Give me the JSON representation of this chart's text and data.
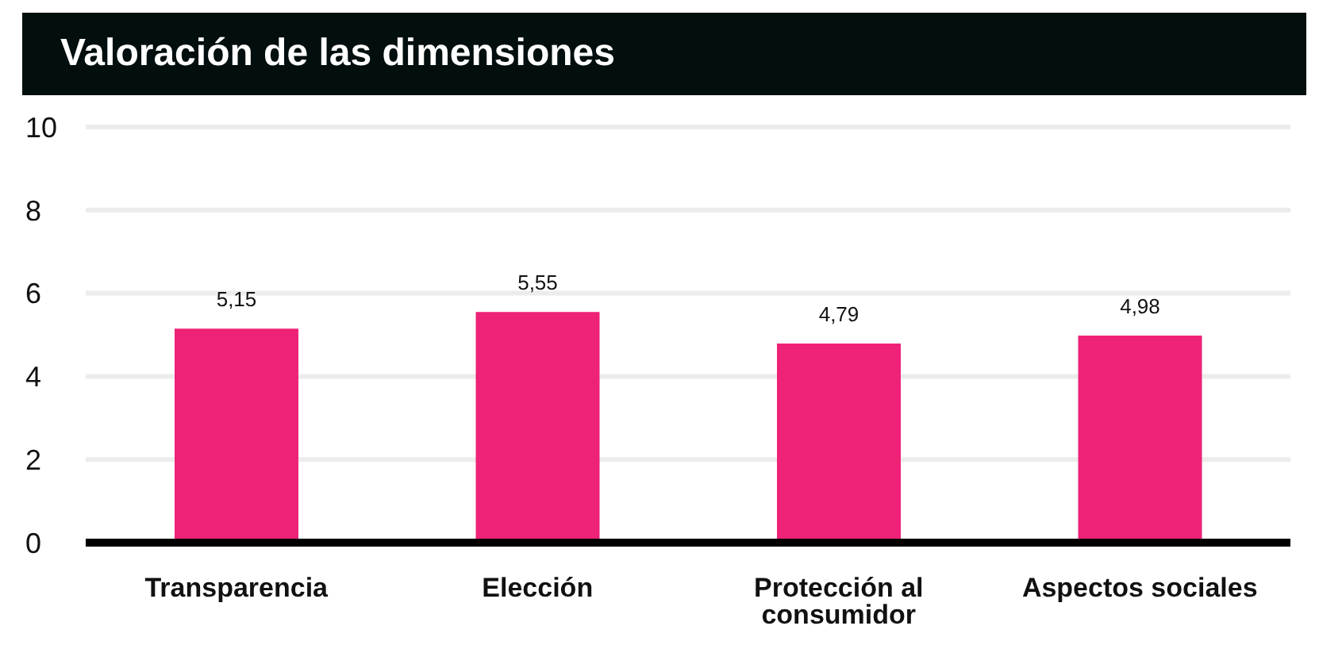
{
  "chart_data": {
    "type": "bar",
    "title": "Valoración de las dimensiones",
    "categories": [
      "Transparencia",
      "Elección",
      "Protección al consumidor",
      "Aspectos sociales"
    ],
    "values": [
      5.15,
      5.55,
      4.79,
      4.98
    ],
    "value_labels": [
      "5,15",
      "5,55",
      "4,79",
      "4,98"
    ],
    "color": "#ee2277",
    "ylim": [
      0,
      10
    ],
    "yticks": [
      0,
      2,
      4,
      6,
      8,
      10
    ],
    "grid": "y"
  }
}
